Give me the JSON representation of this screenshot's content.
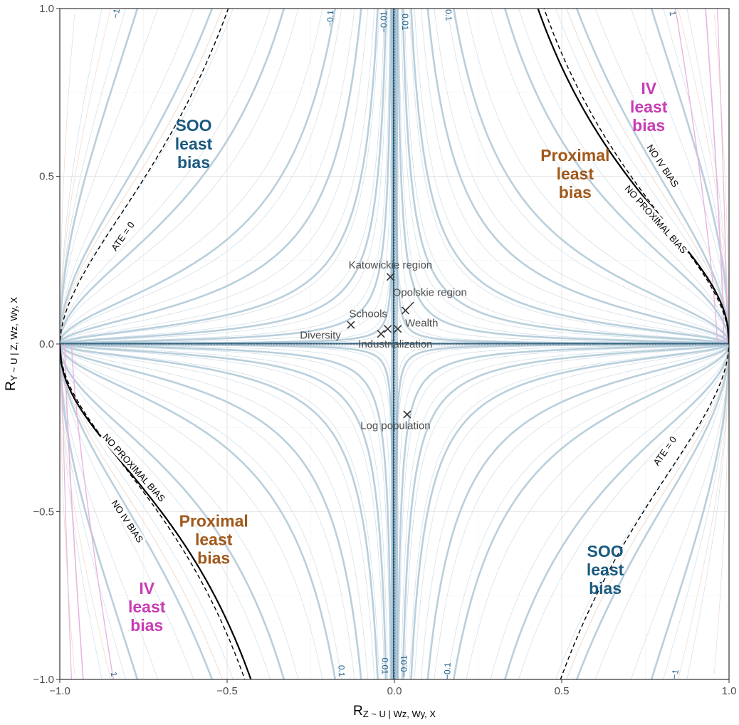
{
  "chart_data": {
    "type": "contour",
    "xlabel": {
      "main": "R",
      "sub": "Z ~ U | Wz, Wy, X"
    },
    "ylabel": {
      "main": "R",
      "sub": "Y ~ U | Z, Wz, Wy, X"
    },
    "xlim": [
      -1.0,
      1.0
    ],
    "ylim": [
      -1.0,
      1.0
    ],
    "x_ticks": [
      {
        "value": -1.0,
        "label": "−1.0"
      },
      {
        "value": -0.5,
        "label": "−0.5"
      },
      {
        "value": 0.0,
        "label": "0.0"
      },
      {
        "value": 0.5,
        "label": "0.5"
      },
      {
        "value": 1.0,
        "label": "1.0"
      }
    ],
    "y_ticks": [
      {
        "value": -1.0,
        "label": "−1.0"
      },
      {
        "value": -0.5,
        "label": "−0.5"
      },
      {
        "value": 0.0,
        "label": "0.0"
      },
      {
        "value": 0.5,
        "label": "0.5"
      },
      {
        "value": 1.0,
        "label": "1.0"
      }
    ],
    "grid": true,
    "colors": {
      "soo": "#1a5a80",
      "proximal": "#a0581a",
      "iv": "#c83cb4",
      "contour": "#b9cfdc",
      "contour_fine": "#c4d4de",
      "points": "#333333"
    },
    "region_labels": [
      {
        "lines": [
          "SOO",
          "least",
          "bias"
        ],
        "x": -0.6,
        "y": 0.58,
        "group": "soo"
      },
      {
        "lines": [
          "SOO",
          "least",
          "bias"
        ],
        "x": 0.63,
        "y": -0.69,
        "group": "soo"
      },
      {
        "lines": [
          "Proximal",
          "least",
          "bias"
        ],
        "x": 0.54,
        "y": 0.49,
        "group": "proximal"
      },
      {
        "lines": [
          "Proximal",
          "least",
          "bias"
        ],
        "x": -0.54,
        "y": -0.6,
        "group": "proximal"
      },
      {
        "lines": [
          "IV",
          "least",
          "bias"
        ],
        "x": 0.76,
        "y": 0.69,
        "group": "iv"
      },
      {
        "lines": [
          "IV",
          "least",
          "bias"
        ],
        "x": -0.74,
        "y": -0.8,
        "group": "iv"
      }
    ],
    "curve_labels": [
      {
        "text": "ATE = 0",
        "x": -0.81,
        "y": 0.32,
        "angle": -55
      },
      {
        "text": "ATE = 0",
        "x": 0.81,
        "y": -0.32,
        "angle": -55
      },
      {
        "text": "NO IV BIAS",
        "x": 0.8,
        "y": 0.53,
        "angle": 56
      },
      {
        "text": "NO IV BIAS",
        "x": -0.8,
        "y": -0.53,
        "angle": 56
      },
      {
        "text": "NO PROXIMAL BIAS",
        "x": 0.78,
        "y": 0.37,
        "angle": 48
      },
      {
        "text": "NO PROXIMAL BIAS",
        "x": -0.78,
        "y": -0.37,
        "angle": 48
      }
    ],
    "contour_labels": [
      {
        "text": "−1",
        "x": -0.83,
        "y": 0.985,
        "angle": -80
      },
      {
        "text": "−0.1",
        "x": -0.19,
        "y": 0.97,
        "angle": -88
      },
      {
        "text": "−0.01",
        "x": -0.03,
        "y": 0.96,
        "angle": -90
      },
      {
        "text": "0.01",
        "x": 0.03,
        "y": 0.96,
        "angle": 90
      },
      {
        "text": "0.1",
        "x": 0.16,
        "y": 0.98,
        "angle": 88
      },
      {
        "text": "1",
        "x": 0.83,
        "y": 0.985,
        "angle": 80
      },
      {
        "text": "0.1",
        "x": -0.16,
        "y": -0.975,
        "angle": 88
      },
      {
        "text": "0.01",
        "x": -0.03,
        "y": -0.96,
        "angle": 90
      },
      {
        "text": "−0.01",
        "x": 0.03,
        "y": -0.96,
        "angle": -90
      },
      {
        "text": "−0.1",
        "x": 0.16,
        "y": -0.975,
        "angle": -88
      },
      {
        "text": "1",
        "x": -0.84,
        "y": -0.985,
        "angle": 80
      },
      {
        "text": "−1",
        "x": 0.84,
        "y": -0.985,
        "angle": -80
      }
    ],
    "points": [
      {
        "label": "Katowickie region",
        "x": -0.012,
        "y": 0.2,
        "lx": -0.012,
        "ly": 0.234,
        "anchor": "middle"
      },
      {
        "label": "Opolskie region",
        "x": 0.033,
        "y": 0.1,
        "lx": -0.005,
        "ly": 0.152,
        "anchor": "start",
        "leader": [
          0.058,
          0.125
        ]
      },
      {
        "label": "Schools",
        "x": -0.13,
        "y": 0.057,
        "lx": -0.135,
        "ly": 0.088,
        "anchor": "start"
      },
      {
        "label": "Wealth",
        "x": 0.01,
        "y": 0.045,
        "lx": 0.032,
        "ly": 0.06,
        "anchor": "start"
      },
      {
        "label": "Diversity",
        "x": -0.04,
        "y": 0.03,
        "lx": -0.16,
        "ly": 0.024,
        "anchor": "end"
      },
      {
        "label": "",
        "x": -0.02,
        "y": 0.045
      },
      {
        "label": "Industrialization",
        "x": 0.0,
        "y": 0.0,
        "lx": 0.003,
        "ly": -0.002,
        "anchor": "middle",
        "hidden_marker": true
      },
      {
        "label": "Log population",
        "x": 0.038,
        "y": -0.21,
        "lx": 0.003,
        "ly": -0.245,
        "anchor": "middle"
      }
    ]
  }
}
